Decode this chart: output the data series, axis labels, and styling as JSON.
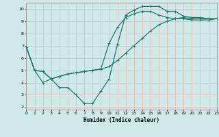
{
  "bg_color": "#cfe8e8",
  "grid_color": "#e8b8b8",
  "line_color": "#1a7a6e",
  "line1": {
    "x": [
      0,
      1,
      2,
      3,
      4,
      5,
      6,
      7,
      8,
      9,
      10,
      11,
      12,
      13,
      14,
      15,
      16,
      17,
      18,
      19,
      20,
      21,
      22,
      23
    ],
    "y": [
      6.9,
      5.0,
      4.0,
      4.3,
      3.6,
      3.6,
      3.0,
      2.3,
      2.3,
      3.3,
      4.3,
      7.1,
      9.5,
      9.9,
      10.2,
      10.2,
      10.2,
      9.8,
      9.8,
      9.4,
      9.3,
      9.3,
      9.2,
      9.2
    ]
  },
  "line2": {
    "x": [
      0,
      1,
      2,
      3,
      4,
      5,
      6,
      7,
      8,
      9,
      10,
      11,
      12,
      13,
      14,
      15,
      16,
      17,
      18,
      19,
      20,
      21,
      22,
      23
    ],
    "y": [
      6.9,
      5.0,
      4.9,
      4.3,
      4.5,
      4.7,
      4.8,
      4.9,
      5.0,
      5.1,
      7.2,
      8.5,
      9.3,
      9.6,
      9.8,
      9.8,
      9.5,
      9.3,
      9.2,
      9.2,
      9.1,
      9.1,
      9.1,
      9.2
    ]
  },
  "line3": {
    "x": [
      0,
      1,
      2,
      3,
      4,
      5,
      6,
      7,
      8,
      9,
      10,
      11,
      12,
      13,
      14,
      15,
      16,
      17,
      18,
      19,
      20,
      21,
      22,
      23
    ],
    "y": [
      6.9,
      5.0,
      4.9,
      4.3,
      4.5,
      4.7,
      4.8,
      4.9,
      5.0,
      5.1,
      5.3,
      5.8,
      6.4,
      7.0,
      7.6,
      8.2,
      8.7,
      9.0,
      9.2,
      9.3,
      9.2,
      9.2,
      9.2,
      9.2
    ]
  },
  "xlim": [
    0,
    23
  ],
  "ylim": [
    1.8,
    10.5
  ],
  "xticks": [
    0,
    1,
    2,
    3,
    4,
    5,
    6,
    7,
    8,
    9,
    10,
    11,
    12,
    13,
    14,
    15,
    16,
    17,
    18,
    19,
    20,
    21,
    22,
    23
  ],
  "yticks": [
    2,
    3,
    4,
    5,
    6,
    7,
    8,
    9,
    10
  ],
  "xlabel": "Humidex (Indice chaleur)",
  "marker": "+",
  "markersize": 3,
  "linewidth": 0.9
}
